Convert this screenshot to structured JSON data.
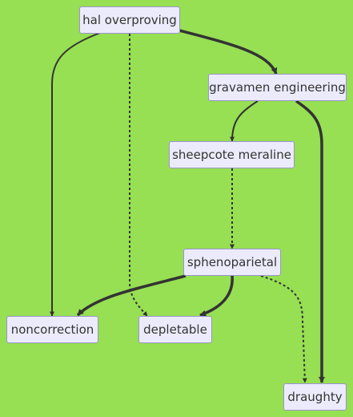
{
  "diagram": {
    "nodes": {
      "hal_overproving": "hal overproving",
      "gravamen_engineering": "gravamen engineering",
      "sheepcote_meraline": "sheepcote meraline",
      "sphenoparietal": "sphenoparietal",
      "noncorrection": "noncorrection",
      "depletable": "depletable",
      "draughty": "draughty"
    },
    "edges": [
      {
        "from": "hal overproving",
        "to": "gravamen engineering",
        "style": "thick"
      },
      {
        "from": "hal overproving",
        "to": "noncorrection",
        "style": "normal"
      },
      {
        "from": "hal overproving",
        "to": "depletable",
        "style": "dotted"
      },
      {
        "from": "gravamen engineering",
        "to": "sheepcote meraline",
        "style": "normal"
      },
      {
        "from": "gravamen engineering",
        "to": "draughty",
        "style": "thick"
      },
      {
        "from": "sheepcote meraline",
        "to": "sphenoparietal",
        "style": "dotted"
      },
      {
        "from": "sphenoparietal",
        "to": "noncorrection",
        "style": "thick"
      },
      {
        "from": "sphenoparietal",
        "to": "depletable",
        "style": "thick"
      },
      {
        "from": "sphenoparietal",
        "to": "draughty",
        "style": "dotted"
      }
    ],
    "colors": {
      "background": "#97df53",
      "node_fill": "#ecebfb",
      "node_border": "#9a94cf",
      "edge": "#333333"
    }
  }
}
